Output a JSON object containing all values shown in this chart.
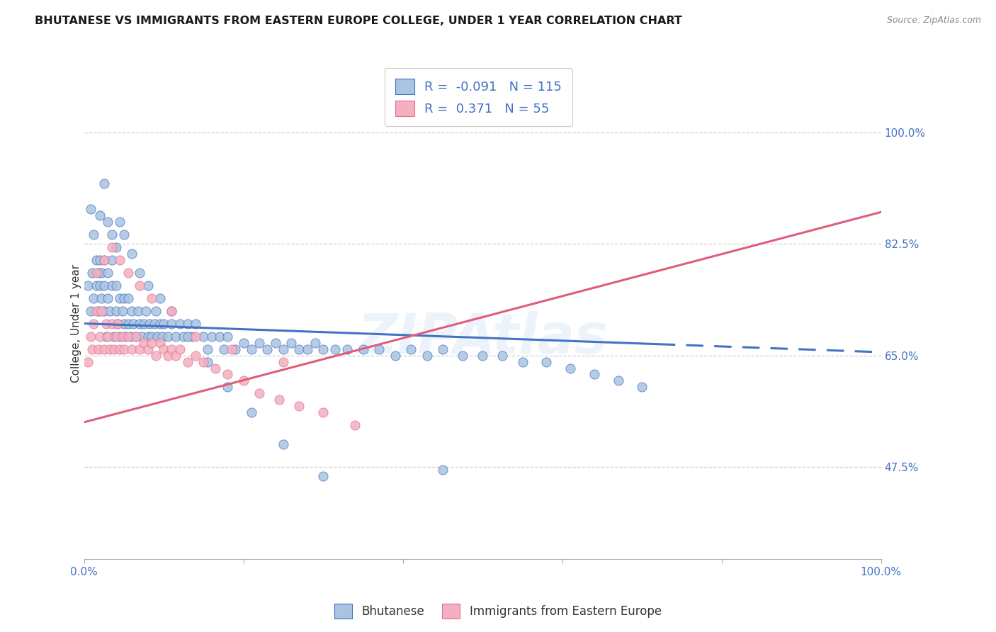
{
  "title": "BHUTANESE VS IMMIGRANTS FROM EASTERN EUROPE COLLEGE, UNDER 1 YEAR CORRELATION CHART",
  "source": "Source: ZipAtlas.com",
  "ylabel": "College, Under 1 year",
  "ytick_labels": [
    "100.0%",
    "82.5%",
    "65.0%",
    "47.5%"
  ],
  "ytick_vals": [
    1.0,
    0.825,
    0.65,
    0.475
  ],
  "xtick_labels": [
    "0.0%",
    "",
    "",
    "",
    "",
    "100.0%"
  ],
  "xtick_vals": [
    0.0,
    0.2,
    0.4,
    0.6,
    0.8,
    1.0
  ],
  "legend_label1": "Bhutanese",
  "legend_label2": "Immigrants from Eastern Europe",
  "R1": -0.091,
  "N1": 115,
  "R2": 0.371,
  "N2": 55,
  "color1_fill": "#a8c4e0",
  "color1_edge": "#4472c4",
  "color2_fill": "#f4b0c0",
  "color2_edge": "#e07090",
  "line_color1": "#4472c4",
  "line_color2": "#e05c7a",
  "watermark": "ZIPAtlas",
  "axis_text_color": "#4472c4",
  "title_color": "#1a1a1a",
  "source_color": "#888888",
  "xmin": 0.0,
  "xmax": 1.0,
  "ymin": 0.33,
  "ymax": 1.07,
  "blue_x": [
    0.005,
    0.008,
    0.01,
    0.012,
    0.015,
    0.015,
    0.018,
    0.018,
    0.02,
    0.02,
    0.022,
    0.022,
    0.025,
    0.025,
    0.025,
    0.028,
    0.03,
    0.03,
    0.032,
    0.035,
    0.035,
    0.038,
    0.04,
    0.04,
    0.042,
    0.045,
    0.045,
    0.048,
    0.05,
    0.05,
    0.052,
    0.055,
    0.055,
    0.058,
    0.06,
    0.062,
    0.065,
    0.068,
    0.07,
    0.072,
    0.075,
    0.078,
    0.08,
    0.082,
    0.085,
    0.088,
    0.09,
    0.092,
    0.095,
    0.098,
    0.1,
    0.105,
    0.11,
    0.115,
    0.12,
    0.125,
    0.13,
    0.135,
    0.14,
    0.15,
    0.155,
    0.16,
    0.17,
    0.175,
    0.18,
    0.19,
    0.2,
    0.21,
    0.22,
    0.23,
    0.24,
    0.25,
    0.26,
    0.27,
    0.28,
    0.29,
    0.3,
    0.315,
    0.33,
    0.35,
    0.37,
    0.39,
    0.41,
    0.43,
    0.45,
    0.475,
    0.5,
    0.525,
    0.55,
    0.58,
    0.61,
    0.64,
    0.67,
    0.7,
    0.008,
    0.012,
    0.02,
    0.025,
    0.03,
    0.035,
    0.04,
    0.045,
    0.05,
    0.06,
    0.07,
    0.08,
    0.095,
    0.11,
    0.13,
    0.155,
    0.18,
    0.21,
    0.25,
    0.3,
    0.45
  ],
  "blue_y": [
    0.76,
    0.72,
    0.78,
    0.74,
    0.8,
    0.76,
    0.78,
    0.72,
    0.76,
    0.8,
    0.74,
    0.78,
    0.76,
    0.72,
    0.8,
    0.68,
    0.74,
    0.78,
    0.72,
    0.76,
    0.8,
    0.68,
    0.72,
    0.76,
    0.7,
    0.74,
    0.68,
    0.72,
    0.7,
    0.74,
    0.68,
    0.7,
    0.74,
    0.68,
    0.72,
    0.7,
    0.68,
    0.72,
    0.7,
    0.68,
    0.7,
    0.72,
    0.68,
    0.7,
    0.68,
    0.7,
    0.72,
    0.68,
    0.7,
    0.68,
    0.7,
    0.68,
    0.7,
    0.68,
    0.7,
    0.68,
    0.7,
    0.68,
    0.7,
    0.68,
    0.66,
    0.68,
    0.68,
    0.66,
    0.68,
    0.66,
    0.67,
    0.66,
    0.67,
    0.66,
    0.67,
    0.66,
    0.67,
    0.66,
    0.66,
    0.67,
    0.66,
    0.66,
    0.66,
    0.66,
    0.66,
    0.65,
    0.66,
    0.65,
    0.66,
    0.65,
    0.65,
    0.65,
    0.64,
    0.64,
    0.63,
    0.62,
    0.61,
    0.6,
    0.88,
    0.84,
    0.87,
    0.92,
    0.86,
    0.84,
    0.82,
    0.86,
    0.84,
    0.81,
    0.78,
    0.76,
    0.74,
    0.72,
    0.68,
    0.64,
    0.6,
    0.56,
    0.51,
    0.46,
    0.47
  ],
  "pink_x": [
    0.005,
    0.008,
    0.01,
    0.012,
    0.015,
    0.018,
    0.02,
    0.022,
    0.025,
    0.028,
    0.03,
    0.032,
    0.035,
    0.038,
    0.04,
    0.042,
    0.045,
    0.048,
    0.05,
    0.055,
    0.06,
    0.065,
    0.07,
    0.075,
    0.08,
    0.085,
    0.09,
    0.095,
    0.1,
    0.105,
    0.11,
    0.115,
    0.12,
    0.13,
    0.14,
    0.15,
    0.165,
    0.18,
    0.2,
    0.22,
    0.245,
    0.27,
    0.3,
    0.34,
    0.015,
    0.025,
    0.035,
    0.045,
    0.055,
    0.07,
    0.085,
    0.11,
    0.14,
    0.185,
    0.25
  ],
  "pink_y": [
    0.64,
    0.68,
    0.66,
    0.7,
    0.72,
    0.66,
    0.68,
    0.72,
    0.66,
    0.7,
    0.68,
    0.66,
    0.7,
    0.66,
    0.68,
    0.7,
    0.66,
    0.68,
    0.66,
    0.68,
    0.66,
    0.68,
    0.66,
    0.67,
    0.66,
    0.67,
    0.65,
    0.67,
    0.66,
    0.65,
    0.66,
    0.65,
    0.66,
    0.64,
    0.65,
    0.64,
    0.63,
    0.62,
    0.61,
    0.59,
    0.58,
    0.57,
    0.56,
    0.54,
    0.78,
    0.8,
    0.82,
    0.8,
    0.78,
    0.76,
    0.74,
    0.72,
    0.68,
    0.66,
    0.64
  ],
  "blue_line_x": [
    0.0,
    1.0
  ],
  "blue_line_y": [
    0.7,
    0.655
  ],
  "pink_line_x": [
    0.0,
    1.0
  ],
  "pink_line_y": [
    0.545,
    0.875
  ]
}
